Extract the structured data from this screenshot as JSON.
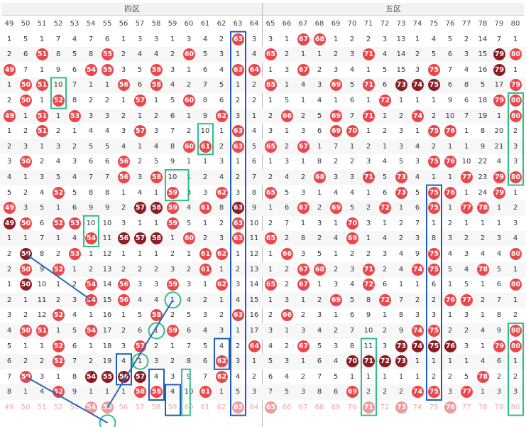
{
  "zones": [
    {
      "label": "四区",
      "start": 49,
      "end": 64
    },
    {
      "label": "五区",
      "start": 65,
      "end": 80
    }
  ],
  "columns": [
    49,
    50,
    51,
    52,
    53,
    54,
    55,
    56,
    57,
    58,
    59,
    60,
    61,
    62,
    63,
    64,
    65,
    66,
    67,
    68,
    69,
    70,
    71,
    72,
    73,
    74,
    75,
    76,
    77,
    78,
    79,
    80
  ],
  "palette": {
    "hit_red": "#e8474b",
    "hit_dark": "#8c1d22",
    "hit_faded": "#f09a9c",
    "box_green": "#2fbf8a",
    "box_blue": "#1d5fb8",
    "trend_line": "#2a68b8"
  },
  "grid_text": [
    "1 5 1 7 4 7 6 1 3 3 1 3 4 2 h63 3 3 1 h67 h68 1 2 2 3 13 1 4 5 2 14 7 1",
    "2 6 h51 8 5 8 h55 2 4 4 2 h60 5 3 1 4 h65 2 1 1 2 3 h71 4 14 2 5 6 3 15 d79 h80",
    "h49 7 1 9 6 h54 h55 3 5 h58 3 1 6 4 h63 h64 1 3 h67 2 3 4 1 5 15 3 h75 7 4 16 d79 1",
    "1 h50 h51 10 7 1 1 h56 6 h58 4 2 7 5 1 2 h65 1 4 3 h69 5 h71 6 d73 d74 d75 6 8 5 17 h79 2",
    "2 h50 1 h52 8 2 2 1 h57 1 5 h60 8 6 2 2 1 5 1 4 1 6 1 h72 1 1 1 9 6 18 h79 h80",
    "h49 1 h51 1 h53 3 3 2 1 2 6 1 9 h62 3 1 2 h66 2 5 h69 7 h71 1 2 h74 2 10 7 19 1 h80",
    "1 2 h51 2 1 4 4 3 h57 3 7 2 10 1 h63 4 3 1 3 6 h69 h70 1 2 3 1 h75 h76 1 8 20 2",
    "2 3 1 3 2 5 5 4 1 4 8 h60 h61 2 h63 5 h65 2 h67 1 7 1 2 1 3 4 2 1 1 9 21 3",
    "3 h50 2 4 3 6 6 h56 2 5 9 1 1 3 1 6 1 3 1 8 2 2 3 4 5 3 h75 h76 10 22 4 3",
    "4 1 3 5 4 7 7 h56 3 h58 10 1 2 4 2 7 2 4 2 h68 3 3 h71 5 h73 4 1 1 h77 23 h79 h80",
    "5 2 4 h52 5 8 8 1 4 1 h59 3 3 h62 3 8 h65 5 3 1 4 4 1 6 h73 5 h75 h76 1 24 h79 1",
    "h49 3 5 1 6 9 9 2 d57 d58 h59 4 h61 8 d63 9 1 6 h67 2 h69 5 2 h72 1 6 h75 1 h77 h78 1 2",
    "d49 h50 6 h52 h53 10 10 3 1 1 h59 5 1 2 h63 10 2 7 1 3 1 h70 3 1 2 7 1 2 1 1 1 3",
    "1 1 7 1 4 h54 11 d56 d57 d58 1 h60 2 3 h63 11 h65 2 8 2 4 h69 1 4 2 3 8 3 2 2 3 4",
    "2 d50 8 2 h53 1 12 1 1 1 2 1 h61 h62 1 12 1 h66 3 5 1 2 2 3 4 9 h75 4 3 4 4 h80",
    "2 h50 9 h52 1 2 13 2 2 2 3 2 h61 1 2 13 1 2 h67 h68 2 3 h71 2 4 h74 h75 5 4 h78 5 1",
    "1 d50 10 1 2 h54 14 h56 3 3 h59 3 1 h62 3 14 h65 2 h67 1 3 4 h72 6 1 1 6 1 5 1 6 h80",
    "2 1 11 2 3 h54 15 h56 4 4 1 4 2 1 4 15 1 3 1 2 h69 5 8 h72 7 2 2 h76 h77 2 7 1",
    "3 2 12 h52 4 1 16 1 5 h58 2 5 3 2 h63 16 2 h66 2 3 1 6 9 1 8 3 3 1 3 1 8 2",
    "4 h50 h51 1 5 h54 17 2 6 1 h59 6 4 3 1 17 3 1 3 4 2 7 10 2 9 h74 h75 2 2 4 9 h80",
    "5 1 1 h52 6 1 18 3 h57 2 1 7 5 4 2 h64 4 2 h67 5 3 8 11 3 d73 d74 d75 d76 3 1 h79 h80",
    "6 2 2 h52 7 2 19 4 1 3 2 8 6 h62 3 1 5 3 1 6 4 d70 d71 d72 d73 1 1 1 1 4 6 1",
    "7 h50 3 1 8 d54 d55 d56 d57 4 3 9 7 h62 4 2 6 4 2 7 5 1 1 1 1 1 2 2 5 h78 2 2",
    "8 1 4 h52 9 1 1 1 h58 h58 4 10 h61 1 5 3 7 5 3 8 6 h69 2 2 2 h74 h75 3 h77 1 3 3"
  ],
  "footer_row": "49 50 51 52 53 h54 h55 56 57 58 59 60 61 62 h63 64 h65 66 67 68 69 70 h71 72 h73 74 75 h76 77 78 79 80"
}
